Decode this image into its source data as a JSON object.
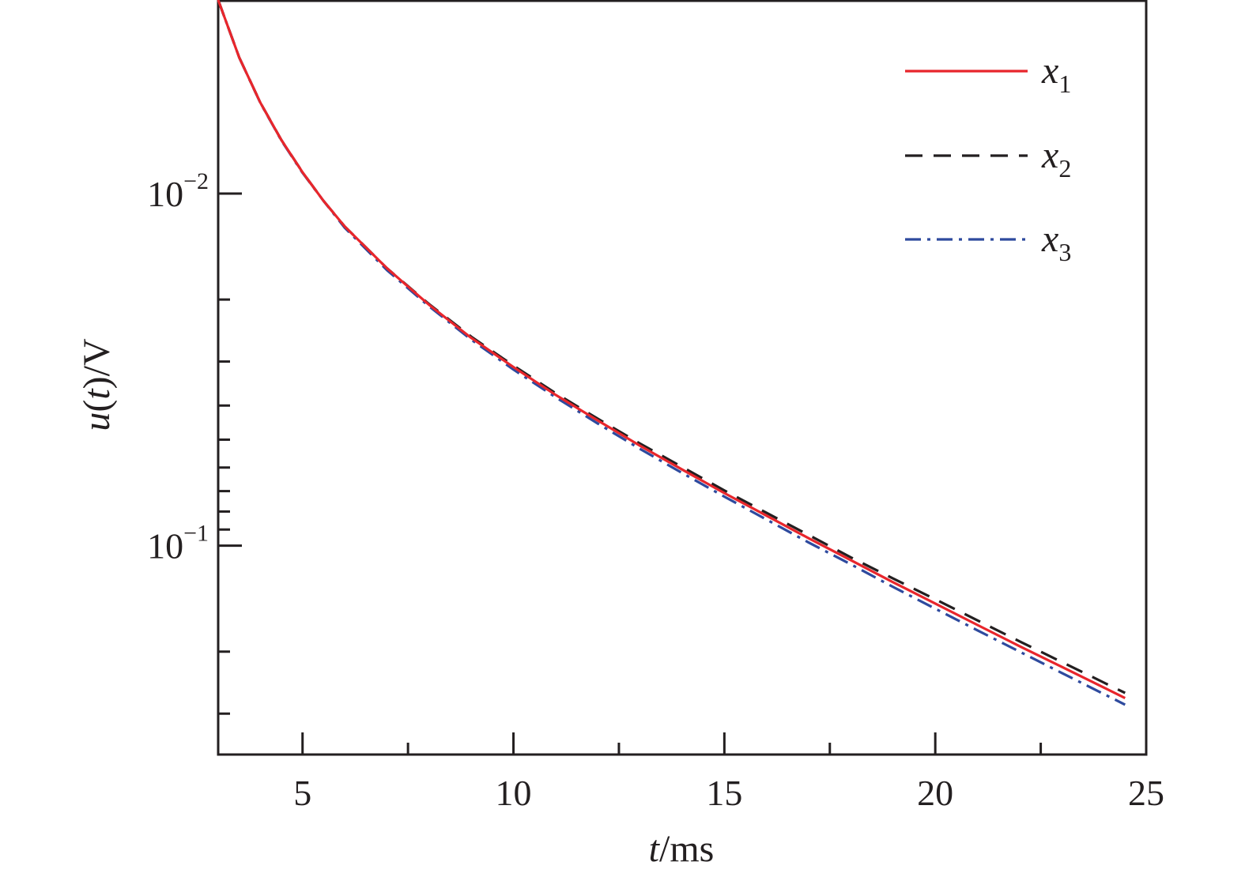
{
  "chart_data": {
    "type": "line",
    "title": "",
    "xlabel": {
      "var": "t",
      "unit": "/ms"
    },
    "ylabel": {
      "var": "u",
      "paren_open": "(",
      "arg": "t",
      "paren_close": ")",
      "unit": "/V"
    },
    "x_scale": "linear",
    "y_scale": "log",
    "y_inverted": true,
    "xlim": [
      3,
      25
    ],
    "ylim": [
      0.00282,
      0.392
    ],
    "x_ticks": [
      5,
      10,
      15,
      20,
      25
    ],
    "x_minor_ticks": [
      7.5,
      12.5,
      17.5,
      22.5
    ],
    "y_major_ticks": [
      {
        "value": 0.01,
        "base": "10",
        "exp": "−2"
      },
      {
        "value": 0.1,
        "base": "10",
        "exp": "−1"
      }
    ],
    "y_minor_ticks": [
      0.02,
      0.03,
      0.04,
      0.05,
      0.06,
      0.07,
      0.08,
      0.09,
      0.2,
      0.3,
      0.4,
      0.5
    ],
    "grid": false,
    "legend_position": "top-right",
    "series": [
      {
        "name": {
          "var": "x",
          "sub": "1"
        },
        "color": "#e8262c",
        "style": "solid",
        "x": [
          3,
          3.5,
          4,
          4.5,
          5,
          5.5,
          6,
          7,
          8,
          9,
          10,
          11,
          12,
          13,
          14,
          15,
          16,
          17,
          18,
          19,
          20,
          21,
          22,
          23,
          24,
          24.5
        ],
        "y": [
          0.00282,
          0.00411,
          0.00552,
          0.00705,
          0.0087,
          0.0105,
          0.0124,
          0.0163,
          0.0207,
          0.0257,
          0.0311,
          0.0373,
          0.0441,
          0.052,
          0.0608,
          0.0709,
          0.0822,
          0.0953,
          0.11,
          0.127,
          0.146,
          0.168,
          0.193,
          0.221,
          0.253,
          0.271
        ]
      },
      {
        "name": {
          "var": "x",
          "sub": "2"
        },
        "color": "#231f20",
        "style": "dashed",
        "x": [
          3,
          3.5,
          4,
          4.5,
          5,
          5.5,
          6,
          7,
          8,
          9,
          10,
          11,
          12,
          13,
          14,
          15,
          16,
          17,
          18,
          19,
          20,
          21,
          22,
          23,
          24,
          24.5
        ],
        "y": [
          0.00282,
          0.00411,
          0.00552,
          0.00705,
          0.0087,
          0.0105,
          0.0124,
          0.0163,
          0.0206,
          0.0255,
          0.0308,
          0.0369,
          0.0436,
          0.0513,
          0.0598,
          0.0697,
          0.0807,
          0.0933,
          0.108,
          0.124,
          0.142,
          0.163,
          0.187,
          0.214,
          0.245,
          0.262
        ]
      },
      {
        "name": {
          "var": "x",
          "sub": "3"
        },
        "color": "#2e4a9e",
        "style": "dashdot",
        "x": [
          3,
          3.5,
          4,
          4.5,
          5,
          5.5,
          6,
          7,
          8,
          9,
          10,
          11,
          12,
          13,
          14,
          15,
          16,
          17,
          18,
          19,
          20,
          21,
          22,
          23,
          24,
          24.5
        ],
        "y": [
          0.00282,
          0.00411,
          0.00553,
          0.00707,
          0.00873,
          0.0105,
          0.0125,
          0.0165,
          0.0209,
          0.026,
          0.0316,
          0.0379,
          0.045,
          0.0531,
          0.0622,
          0.0726,
          0.0843,
          0.098,
          0.113,
          0.131,
          0.151,
          0.174,
          0.2,
          0.23,
          0.264,
          0.283
        ]
      }
    ]
  }
}
